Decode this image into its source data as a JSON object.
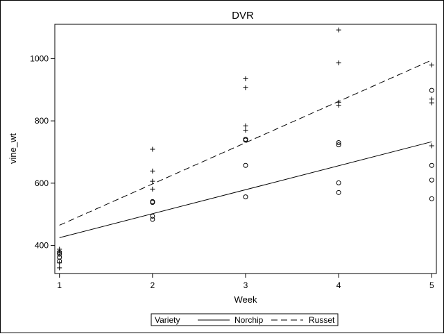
{
  "chart_data": {
    "type": "scatter",
    "title": "DVR",
    "xlabel": "Week",
    "ylabel": "vine_wt",
    "xlim": [
      0.95,
      5.05
    ],
    "ylim": [
      310,
      1110
    ],
    "xticks": [
      1,
      2,
      3,
      4,
      5
    ],
    "yticks": [
      400,
      600,
      800,
      1000
    ],
    "grid": false,
    "legend": {
      "placement": "bottom-center",
      "title": "Variety",
      "entries": [
        {
          "label": "Norchip",
          "line_style": "solid"
        },
        {
          "label": "Russet",
          "line_style": "dashed"
        }
      ]
    },
    "series": [
      {
        "name": "Norchip",
        "marker": "circle",
        "line_style": "solid",
        "points": [
          {
            "x": 1,
            "y": 350
          },
          {
            "x": 1,
            "y": 362
          },
          {
            "x": 1,
            "y": 372
          },
          {
            "x": 1,
            "y": 378
          },
          {
            "x": 2,
            "y": 484
          },
          {
            "x": 2,
            "y": 494
          },
          {
            "x": 2,
            "y": 538
          },
          {
            "x": 2,
            "y": 541
          },
          {
            "x": 3,
            "y": 556
          },
          {
            "x": 3,
            "y": 657
          },
          {
            "x": 3,
            "y": 738
          },
          {
            "x": 3,
            "y": 741
          },
          {
            "x": 4,
            "y": 570
          },
          {
            "x": 4,
            "y": 601
          },
          {
            "x": 4,
            "y": 723
          },
          {
            "x": 4,
            "y": 730
          },
          {
            "x": 5,
            "y": 550
          },
          {
            "x": 5,
            "y": 610
          },
          {
            "x": 5,
            "y": 657
          },
          {
            "x": 5,
            "y": 898
          }
        ],
        "fit": [
          {
            "x": 1,
            "y": 425
          },
          {
            "x": 5,
            "y": 733
          }
        ]
      },
      {
        "name": "Russet",
        "marker": "plus",
        "line_style": "dashed",
        "points": [
          {
            "x": 1,
            "y": 328
          },
          {
            "x": 1,
            "y": 344
          },
          {
            "x": 1,
            "y": 381
          },
          {
            "x": 1,
            "y": 388
          },
          {
            "x": 2,
            "y": 581
          },
          {
            "x": 2,
            "y": 606
          },
          {
            "x": 2,
            "y": 639
          },
          {
            "x": 2,
            "y": 709
          },
          {
            "x": 3,
            "y": 770
          },
          {
            "x": 3,
            "y": 784
          },
          {
            "x": 3,
            "y": 906
          },
          {
            "x": 3,
            "y": 935
          },
          {
            "x": 4,
            "y": 850
          },
          {
            "x": 4,
            "y": 860
          },
          {
            "x": 4,
            "y": 986
          },
          {
            "x": 4,
            "y": 1092
          },
          {
            "x": 5,
            "y": 720
          },
          {
            "x": 5,
            "y": 858
          },
          {
            "x": 5,
            "y": 870
          },
          {
            "x": 5,
            "y": 979
          }
        ],
        "fit": [
          {
            "x": 1,
            "y": 465
          },
          {
            "x": 5,
            "y": 995
          }
        ]
      }
    ]
  }
}
